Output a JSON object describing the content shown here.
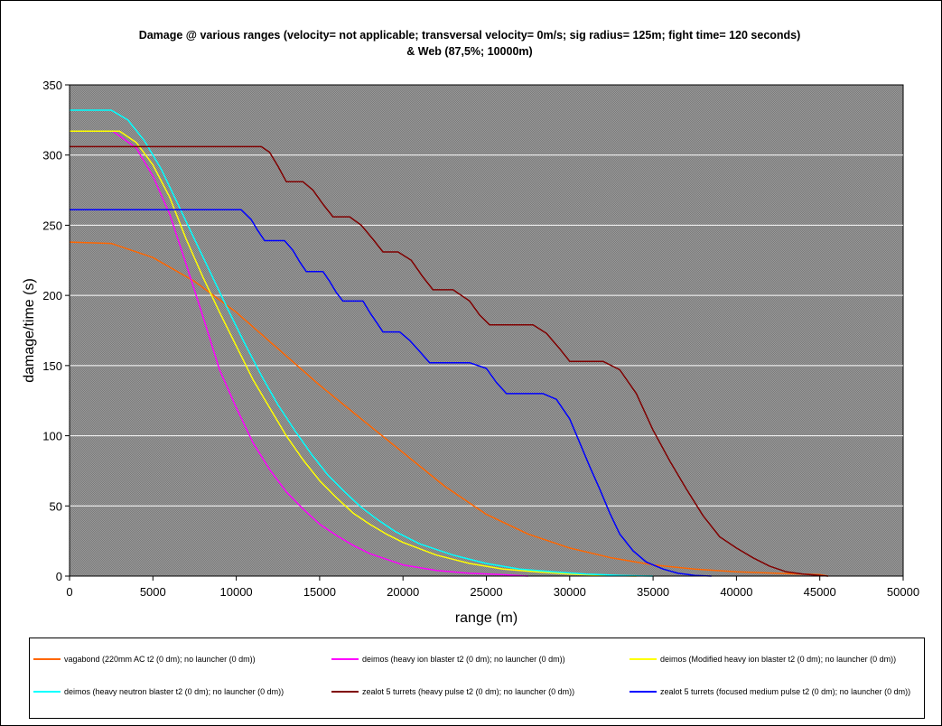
{
  "chart_data": {
    "type": "line",
    "title": "Damage @ various ranges (velocity= not applicable; transversal velocity= 0m/s; sig radius= 125m; fight time= 120 seconds) & Web (87,5%; 10000m)",
    "xlabel": "range (m)",
    "ylabel": "damage/time (s)",
    "xlim": [
      0,
      50000
    ],
    "ylim": [
      0,
      350
    ],
    "x_ticks": [
      "0",
      "5000",
      "10000",
      "15000",
      "20000",
      "25000",
      "30000",
      "35000",
      "40000",
      "45000",
      "50000"
    ],
    "y_ticks": [
      "0",
      "50",
      "100",
      "150",
      "200",
      "250",
      "300",
      "350"
    ],
    "grid": "horizontal",
    "plot_background": "#808080",
    "legend_position": "bottom",
    "series": [
      {
        "name": "vagabond (220mm AC t2 (0 dm); no launcher (0 dm))",
        "color": "#ff6600",
        "points": [
          [
            0,
            238
          ],
          [
            2500,
            237
          ],
          [
            5000,
            227
          ],
          [
            7500,
            210
          ],
          [
            10000,
            188
          ],
          [
            12500,
            162
          ],
          [
            15000,
            136
          ],
          [
            17500,
            112
          ],
          [
            20000,
            88
          ],
          [
            22500,
            64
          ],
          [
            25000,
            44
          ],
          [
            27500,
            30
          ],
          [
            30000,
            20
          ],
          [
            32500,
            13
          ],
          [
            35000,
            8
          ],
          [
            37500,
            5
          ],
          [
            40000,
            3
          ],
          [
            42500,
            2
          ],
          [
            45000,
            1
          ],
          [
            45500,
            0
          ]
        ]
      },
      {
        "name": "deimos (heavy ion blaster t2 (0 dm); no launcher (0 dm))",
        "color": "#ff00ff",
        "points": [
          [
            0,
            317
          ],
          [
            2600,
            317
          ],
          [
            4000,
            305
          ],
          [
            5000,
            285
          ],
          [
            6000,
            258
          ],
          [
            7000,
            222
          ],
          [
            8000,
            185
          ],
          [
            9000,
            147
          ],
          [
            10000,
            120
          ],
          [
            11000,
            95
          ],
          [
            12000,
            76
          ],
          [
            13000,
            60
          ],
          [
            14000,
            48
          ],
          [
            15000,
            37
          ],
          [
            16000,
            29
          ],
          [
            17000,
            22
          ],
          [
            18000,
            16
          ],
          [
            20000,
            8
          ],
          [
            22000,
            4
          ],
          [
            24000,
            2
          ],
          [
            26000,
            1
          ],
          [
            27500,
            0
          ]
        ]
      },
      {
        "name": "deimos (Modified heavy ion blaster t2 (0 dm); no launcher (0 dm))",
        "color": "#ffff00",
        "points": [
          [
            0,
            317
          ],
          [
            3000,
            317
          ],
          [
            4000,
            309
          ],
          [
            5000,
            293
          ],
          [
            6000,
            270
          ],
          [
            7000,
            240
          ],
          [
            8000,
            213
          ],
          [
            9000,
            188
          ],
          [
            10000,
            164
          ],
          [
            11000,
            140
          ],
          [
            12000,
            120
          ],
          [
            13000,
            100
          ],
          [
            14000,
            83
          ],
          [
            15000,
            68
          ],
          [
            16000,
            56
          ],
          [
            17000,
            45
          ],
          [
            18000,
            37
          ],
          [
            19000,
            30
          ],
          [
            20000,
            24
          ],
          [
            22000,
            15
          ],
          [
            24000,
            9
          ],
          [
            26000,
            5
          ],
          [
            28000,
            3
          ],
          [
            30000,
            1.5
          ],
          [
            32000,
            0.5
          ],
          [
            34000,
            0
          ]
        ]
      },
      {
        "name": "deimos (heavy neutron blaster t2 (0 dm); no launcher (0 dm))",
        "color": "#00ffff",
        "points": [
          [
            0,
            332
          ],
          [
            2500,
            332
          ],
          [
            3500,
            325
          ],
          [
            4500,
            310
          ],
          [
            5500,
            290
          ],
          [
            6500,
            265
          ],
          [
            7500,
            240
          ],
          [
            8500,
            215
          ],
          [
            9500,
            190
          ],
          [
            10500,
            166
          ],
          [
            11500,
            143
          ],
          [
            12500,
            122
          ],
          [
            13500,
            104
          ],
          [
            14500,
            87
          ],
          [
            15500,
            72
          ],
          [
            16500,
            60
          ],
          [
            17500,
            49
          ],
          [
            18500,
            40
          ],
          [
            19500,
            32
          ],
          [
            21000,
            23
          ],
          [
            23000,
            15
          ],
          [
            25000,
            9
          ],
          [
            27000,
            5
          ],
          [
            29000,
            3
          ],
          [
            31000,
            1.5
          ],
          [
            33000,
            0.5
          ],
          [
            35000,
            0
          ]
        ]
      },
      {
        "name": "zealot 5 turrets (heavy pulse t2 (0 dm); no launcher (0 dm))",
        "color": "#800000",
        "points": [
          [
            0,
            306
          ],
          [
            11500,
            306
          ],
          [
            12000,
            302
          ],
          [
            12500,
            292
          ],
          [
            13000,
            281
          ],
          [
            14000,
            281
          ],
          [
            14600,
            275
          ],
          [
            15200,
            265
          ],
          [
            15800,
            256
          ],
          [
            16800,
            256
          ],
          [
            17500,
            250
          ],
          [
            18200,
            240
          ],
          [
            18800,
            231
          ],
          [
            19700,
            231
          ],
          [
            20500,
            225
          ],
          [
            21200,
            213
          ],
          [
            21800,
            204
          ],
          [
            23000,
            204
          ],
          [
            24000,
            196
          ],
          [
            24600,
            186
          ],
          [
            25200,
            179
          ],
          [
            27800,
            179
          ],
          [
            28600,
            173
          ],
          [
            29400,
            162
          ],
          [
            30000,
            153
          ],
          [
            32000,
            153
          ],
          [
            33000,
            147
          ],
          [
            34000,
            130
          ],
          [
            35000,
            104
          ],
          [
            36000,
            82
          ],
          [
            37000,
            62
          ],
          [
            38000,
            43
          ],
          [
            39000,
            28
          ],
          [
            40000,
            20
          ],
          [
            41000,
            13
          ],
          [
            42000,
            7
          ],
          [
            43000,
            3
          ],
          [
            44000,
            1.5
          ],
          [
            45500,
            0
          ]
        ]
      },
      {
        "name": "zealot 5 turrets (focused medium pulse t2 (0 dm); no launcher (0 dm))",
        "color": "#0000ff",
        "points": [
          [
            0,
            261
          ],
          [
            10300,
            261
          ],
          [
            10900,
            254
          ],
          [
            11300,
            246
          ],
          [
            11700,
            239
          ],
          [
            12900,
            239
          ],
          [
            13400,
            232
          ],
          [
            13800,
            224
          ],
          [
            14200,
            217
          ],
          [
            15200,
            217
          ],
          [
            15600,
            210
          ],
          [
            16000,
            202
          ],
          [
            16400,
            196
          ],
          [
            17600,
            196
          ],
          [
            18000,
            188
          ],
          [
            18400,
            181
          ],
          [
            18800,
            174
          ],
          [
            19800,
            174
          ],
          [
            20400,
            168
          ],
          [
            21000,
            160
          ],
          [
            21600,
            152
          ],
          [
            24000,
            152
          ],
          [
            25000,
            148
          ],
          [
            25600,
            138
          ],
          [
            26200,
            130
          ],
          [
            28400,
            130
          ],
          [
            29200,
            126
          ],
          [
            30000,
            112
          ],
          [
            30600,
            95
          ],
          [
            31200,
            78
          ],
          [
            31800,
            62
          ],
          [
            32400,
            45
          ],
          [
            33000,
            30
          ],
          [
            33800,
            18
          ],
          [
            34600,
            10
          ],
          [
            35600,
            5
          ],
          [
            36500,
            2
          ],
          [
            37500,
            0.5
          ],
          [
            38500,
            0
          ]
        ]
      }
    ]
  }
}
